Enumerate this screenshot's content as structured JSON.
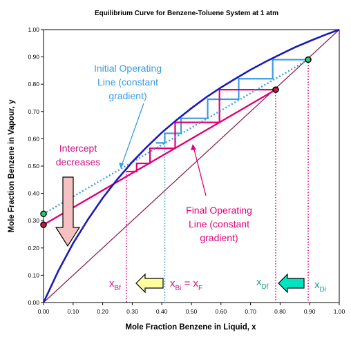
{
  "chart_data": {
    "type": "line",
    "title": "Equilibrium Curve for Benzene-Toluene System at 1 atm",
    "xlabel": "Mole Fraction Benzene in Liquid, x",
    "ylabel": "Mole Fraction Benzene in Vapour, y",
    "xlim": [
      0,
      1
    ],
    "ylim": [
      0,
      1
    ],
    "xticks": [
      "0.00",
      "0.10",
      "0.20",
      "0.30",
      "0.40",
      "0.50",
      "0.60",
      "0.70",
      "0.80",
      "0.90",
      "1.00"
    ],
    "yticks": [
      "0.00",
      "0.10",
      "0.20",
      "0.30",
      "0.40",
      "0.50",
      "0.60",
      "0.70",
      "0.80",
      "0.90",
      "1.00"
    ],
    "grid": false,
    "series": [
      {
        "role": "equilibrium_curve",
        "color": "#1a1ab8",
        "x": [
          0,
          0.05,
          0.1,
          0.15,
          0.2,
          0.25,
          0.3,
          0.35,
          0.4,
          0.45,
          0.5,
          0.55,
          0.6,
          0.65,
          0.7,
          0.75,
          0.8,
          0.85,
          0.9,
          0.95,
          1.0
        ],
        "y": [
          0,
          0.116,
          0.217,
          0.304,
          0.383,
          0.452,
          0.515,
          0.571,
          0.623,
          0.669,
          0.712,
          0.752,
          0.788,
          0.821,
          0.853,
          0.882,
          0.909,
          0.935,
          0.958,
          0.98,
          1.0
        ]
      },
      {
        "role": "diagonal_y_equals_x",
        "color": "#8b2252",
        "x": [
          0,
          1
        ],
        "y": [
          0,
          1
        ]
      },
      {
        "role": "initial_operating_line",
        "color": "#3a9be0",
        "dashed": true,
        "x": [
          0,
          0.895
        ],
        "y": [
          0.325,
          0.89
        ]
      },
      {
        "role": "final_operating_line",
        "color": "#e0007a",
        "x": [
          0,
          0.785
        ],
        "y": [
          0.285,
          0.78
        ]
      }
    ],
    "steps_initial": {
      "color": "#3a9be0",
      "points": [
        [
          0.895,
          0.89
        ],
        [
          0.775,
          0.89
        ],
        [
          0.775,
          0.82
        ],
        [
          0.66,
          0.82
        ],
        [
          0.66,
          0.745
        ],
        [
          0.555,
          0.745
        ],
        [
          0.555,
          0.675
        ],
        [
          0.465,
          0.675
        ],
        [
          0.465,
          0.62
        ],
        [
          0.41,
          0.62
        ],
        [
          0.41,
          0.585
        ],
        [
          0.38,
          0.585
        ]
      ]
    },
    "steps_final": {
      "color": "#e0007a",
      "points": [
        [
          0.785,
          0.78
        ],
        [
          0.595,
          0.78
        ],
        [
          0.595,
          0.66
        ],
        [
          0.445,
          0.66
        ],
        [
          0.445,
          0.565
        ],
        [
          0.36,
          0.565
        ],
        [
          0.36,
          0.51
        ],
        [
          0.315,
          0.51
        ],
        [
          0.315,
          0.48
        ],
        [
          0.28,
          0.48
        ]
      ]
    },
    "markers": [
      {
        "x": 0,
        "y": 0.325,
        "fill": "#2ecc71"
      },
      {
        "x": 0,
        "y": 0.285,
        "fill": "#c0213a"
      },
      {
        "x": 0.895,
        "y": 0.89,
        "fill": "#2ecc71"
      },
      {
        "x": 0.785,
        "y": 0.78,
        "fill": "#c0213a"
      }
    ],
    "vertical_guides": [
      {
        "x": 0.28,
        "color": "#e0007a"
      },
      {
        "x": 0.41,
        "color": "#3a9be0"
      },
      {
        "x": 0.785,
        "color": "#e0007a"
      },
      {
        "x": 0.895,
        "color": "#e0007a"
      }
    ],
    "annotations": {
      "initial_line_label": [
        "Initial Operating",
        "Line (constant",
        "gradient)"
      ],
      "final_line_label": [
        "Final Operating",
        "Line (constant",
        "gradient)"
      ],
      "intercept_label": [
        "Intercept",
        "decreases"
      ],
      "xbf": {
        "main": "x",
        "sub": "Bf"
      },
      "xbi": {
        "main": "x",
        "sub": "Bi",
        "eq": " = x",
        "sub2": "F"
      },
      "xdf": {
        "main": "x",
        "sub": "Df"
      },
      "xdi": {
        "main": "x",
        "sub": "Di"
      }
    }
  }
}
